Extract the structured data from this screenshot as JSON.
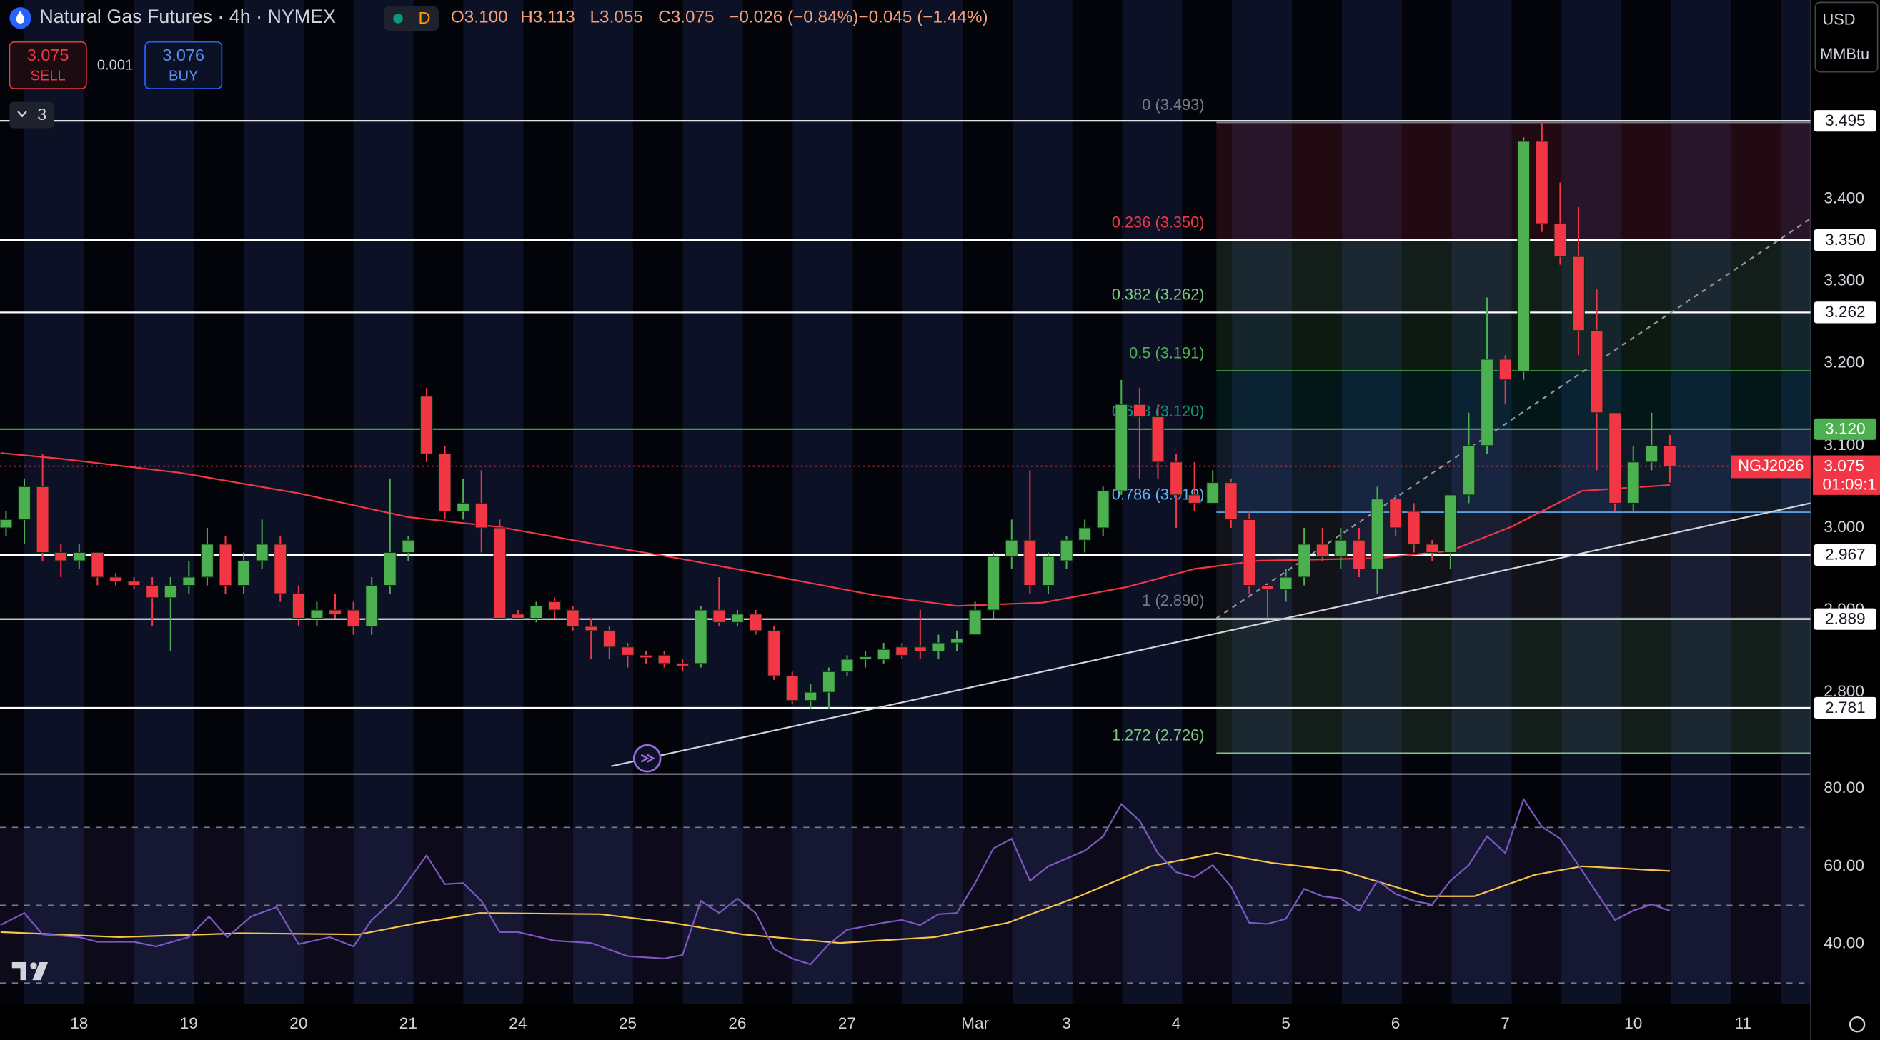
{
  "header": {
    "title": "Natural Gas Futures · 4h · NYMEX",
    "interval": "D",
    "open": "O3.100",
    "high": "H3.113",
    "low": "L3.055",
    "close": "C3.075",
    "change": "−0.026 (−0.84%)",
    "change_ext": "−0.045 (−1.44%)"
  },
  "trade": {
    "sell_price": "3.075",
    "sell": "SELL",
    "spread": "0.001",
    "buy_price": "3.076",
    "buy": "BUY"
  },
  "indicators_toggle": "3",
  "axis_unit": {
    "currency": "USD",
    "unit": "MMBtu"
  },
  "chart_data": {
    "type": "candlestick",
    "xlim": [
      -0.33,
      98.69
    ],
    "ylim": [
      2.702,
      3.642
    ],
    "up_color": "#4caf50",
    "down_color": "#f23645",
    "xticks": [
      {
        "value": 4,
        "label": "18"
      },
      {
        "value": 10,
        "label": "19"
      },
      {
        "value": 16,
        "label": "20"
      },
      {
        "value": 22,
        "label": "21"
      },
      {
        "value": 28,
        "label": "24"
      },
      {
        "value": 34,
        "label": "25"
      },
      {
        "value": 40,
        "label": "26"
      },
      {
        "value": 46,
        "label": "27"
      },
      {
        "value": 53,
        "label": "Mar"
      },
      {
        "value": 58,
        "label": "3"
      },
      {
        "value": 64,
        "label": "4"
      },
      {
        "value": 70,
        "label": "5"
      },
      {
        "value": 76,
        "label": "6"
      },
      {
        "value": 82,
        "label": "7"
      },
      {
        "value": 89,
        "label": "10"
      },
      {
        "value": 95,
        "label": "11"
      }
    ],
    "yticks": [
      {
        "value": 3.4,
        "label": "3.400"
      },
      {
        "value": 3.3,
        "label": "3.300"
      },
      {
        "value": 3.2,
        "label": "3.200"
      },
      {
        "value": 3.1,
        "label": "3.100"
      },
      {
        "value": 3.0,
        "label": "3.000"
      },
      {
        "value": 2.9,
        "label": "2.900"
      },
      {
        "value": 2.8,
        "label": "2.800"
      }
    ],
    "open": [
      3.0,
      3.01,
      3.05,
      2.97,
      2.96,
      2.97,
      2.94,
      2.935,
      2.93,
      2.915,
      2.93,
      2.94,
      2.98,
      2.93,
      2.96,
      2.98,
      2.92,
      2.89,
      2.9,
      2.9,
      2.88,
      2.93,
      2.97,
      3.16,
      3.09,
      3.02,
      3.03,
      3.0,
      2.895,
      2.89,
      2.91,
      2.9,
      2.88,
      2.875,
      2.855,
      2.845,
      2.845,
      2.835,
      2.835,
      2.9,
      2.885,
      2.895,
      2.875,
      2.82,
      2.79,
      2.8,
      2.825,
      2.84,
      2.84,
      2.855,
      2.855,
      2.85,
      2.86,
      2.87,
      2.9,
      2.965,
      2.985,
      2.93,
      2.96,
      2.985,
      3.0,
      3.045,
      3.15,
      3.135,
      3.08,
      3.04,
      3.03,
      3.055,
      3.01,
      2.93,
      2.925,
      2.94,
      2.98,
      2.965,
      2.985,
      2.95,
      3.035,
      3.02,
      2.98,
      2.97,
      3.04,
      3.1,
      3.205,
      3.19,
      3.47,
      3.37,
      3.33,
      3.24,
      3.14,
      3.03,
      3.08,
      3.1
    ],
    "high": [
      3.02,
      3.06,
      3.09,
      2.98,
      2.98,
      2.97,
      2.945,
      2.94,
      2.94,
      2.94,
      2.96,
      3.0,
      2.99,
      2.97,
      3.01,
      2.99,
      2.93,
      2.91,
      2.92,
      2.91,
      2.94,
      3.06,
      2.99,
      3.17,
      3.1,
      3.06,
      3.07,
      3.01,
      2.9,
      2.91,
      2.915,
      2.905,
      2.89,
      2.88,
      2.86,
      2.85,
      2.85,
      2.84,
      2.905,
      2.94,
      2.9,
      2.9,
      2.88,
      2.825,
      2.81,
      2.83,
      2.845,
      2.85,
      2.86,
      2.86,
      2.9,
      2.87,
      2.875,
      2.91,
      2.97,
      3.01,
      3.07,
      2.97,
      2.99,
      3.01,
      3.05,
      3.18,
      3.17,
      3.15,
      3.09,
      3.08,
      3.07,
      3.06,
      3.02,
      2.93,
      2.95,
      3.0,
      3.0,
      3.0,
      3.0,
      3.05,
      3.04,
      3.03,
      2.985,
      3.04,
      3.14,
      3.28,
      3.21,
      3.475,
      3.495,
      3.42,
      3.39,
      3.29,
      3.14,
      3.1,
      3.14,
      3.113
    ],
    "low": [
      2.99,
      2.98,
      2.96,
      2.94,
      2.95,
      2.93,
      2.93,
      2.925,
      2.88,
      2.85,
      2.92,
      2.93,
      2.92,
      2.92,
      2.95,
      2.91,
      2.88,
      2.88,
      2.89,
      2.87,
      2.87,
      2.92,
      2.96,
      3.08,
      3.01,
      3.01,
      2.97,
      2.89,
      2.89,
      2.885,
      2.89,
      2.875,
      2.84,
      2.84,
      2.83,
      2.835,
      2.83,
      2.825,
      2.83,
      2.88,
      2.88,
      2.87,
      2.815,
      2.785,
      2.78,
      2.78,
      2.82,
      2.83,
      2.835,
      2.84,
      2.84,
      2.84,
      2.85,
      2.87,
      2.89,
      2.95,
      2.92,
      2.92,
      2.95,
      2.97,
      2.99,
      3.04,
      3.06,
      3.06,
      3.0,
      3.02,
      3.03,
      3.0,
      2.92,
      2.89,
      2.91,
      2.93,
      2.96,
      2.95,
      2.94,
      2.92,
      2.99,
      2.97,
      2.96,
      2.95,
      3.03,
      3.09,
      3.15,
      3.18,
      3.36,
      3.32,
      3.21,
      3.07,
      3.02,
      3.02,
      3.07,
      3.055
    ],
    "close": [
      3.01,
      3.05,
      2.97,
      2.96,
      2.97,
      2.94,
      2.935,
      2.93,
      2.915,
      2.93,
      2.94,
      2.98,
      2.93,
      2.96,
      2.98,
      2.92,
      2.89,
      2.9,
      2.895,
      2.88,
      2.93,
      2.97,
      2.985,
      3.09,
      3.02,
      3.03,
      3.0,
      2.89,
      2.89,
      2.905,
      2.9,
      2.88,
      2.875,
      2.855,
      2.845,
      2.842,
      2.835,
      2.832,
      2.9,
      2.885,
      2.895,
      2.875,
      2.82,
      2.79,
      2.8,
      2.825,
      2.84,
      2.843,
      2.852,
      2.845,
      2.85,
      2.86,
      2.865,
      2.9,
      2.965,
      2.985,
      2.93,
      2.965,
      2.985,
      3.0,
      3.045,
      3.15,
      3.135,
      3.08,
      3.04,
      3.03,
      3.055,
      3.01,
      2.93,
      2.925,
      2.94,
      2.98,
      2.965,
      2.985,
      2.95,
      3.035,
      3.0,
      2.98,
      2.97,
      3.04,
      3.1,
      3.205,
      3.18,
      3.47,
      3.37,
      3.33,
      3.24,
      3.14,
      3.03,
      3.08,
      3.1,
      3.075
    ],
    "ma": {
      "color": "#f23645",
      "x": [
        -0.3,
        3,
        9.5,
        16,
        22,
        27,
        32.5,
        37,
        42.3,
        47.5,
        52,
        56.7,
        61.3,
        65,
        68.5,
        75,
        79,
        82.3,
        86.2,
        91
      ],
      "values": [
        3.091,
        3.084,
        3.067,
        3.042,
        3.013,
        3.001,
        2.979,
        2.962,
        2.94,
        2.918,
        2.905,
        2.909,
        2.928,
        2.95,
        2.96,
        2.963,
        2.972,
        3.001,
        3.045,
        3.052
      ]
    },
    "levels": [
      {
        "value": 3.495,
        "label": "3.495",
        "color": "#ffffff",
        "label_color": "#131722"
      },
      {
        "value": 3.35,
        "label": "3.350",
        "color": "#ffffff",
        "label_color": "#131722"
      },
      {
        "value": 3.262,
        "label": "3.262",
        "color": "#ffffff",
        "label_color": "#131722"
      },
      {
        "value": 3.12,
        "label": "3.120",
        "color": "#4caf50",
        "label_color": "#ffffff"
      },
      {
        "value": 2.967,
        "label": "2.967",
        "color": "#ffffff",
        "label_color": "#131722"
      },
      {
        "value": 2.889,
        "label": "2.889",
        "color": "#ffffff",
        "label_color": "#131722"
      },
      {
        "value": 2.781,
        "label": "2.781",
        "color": "#ffffff",
        "label_color": "#131722"
      }
    ],
    "last": {
      "value": 3.075,
      "label": "3.075",
      "symbol": "NGJ2026",
      "countdown": "01:09:1",
      "color": "#f23645"
    },
    "fib": {
      "x_start": 66.2,
      "levels": [
        {
          "label": "0 (3.493)",
          "price": 3.493,
          "color": "#787b86"
        },
        {
          "label": "0.236 (3.350)",
          "price": 3.35,
          "color": "#f23645"
        },
        {
          "label": "0.382 (3.262)",
          "price": 3.262,
          "color": "#81c784"
        },
        {
          "label": "0.5 (3.191)",
          "price": 3.191,
          "color": "#4caf50"
        },
        {
          "label": "0.618 (3.120)",
          "price": 3.12,
          "color": "#089981"
        },
        {
          "label": "0.786 (3.019)",
          "price": 3.019,
          "color": "#64b5f6"
        },
        {
          "label": "1 (2.890)",
          "price": 2.89,
          "color": "#787b86"
        },
        {
          "label": "1.272 (2.726)",
          "price": 2.726,
          "color": "#81c784"
        }
      ]
    },
    "trendlines": [
      {
        "x": [
          33.1,
          98.69
        ],
        "y": [
          2.71,
          3.03
        ],
        "color": "#d1d4dc",
        "dashed": false
      },
      {
        "x": [
          66.2,
          98.69
        ],
        "y": [
          2.89,
          3.376
        ],
        "color": "#9598a1",
        "dashed": true
      }
    ],
    "rsi": {
      "ylim": [
        24.6,
        83.1
      ],
      "yticks": [
        {
          "value": 80,
          "label": "80.00"
        },
        {
          "value": 60,
          "label": "60.00"
        },
        {
          "value": 40,
          "label": "40.00"
        }
      ],
      "bands": [
        70,
        50,
        30
      ],
      "color": "#7e57c2",
      "x": [
        -0.3,
        1,
        2,
        4,
        5,
        7,
        8.2,
        10,
        11.1,
        12.1,
        13.4,
        14.8,
        16,
        17.7,
        19,
        20,
        21.3,
        23,
        24,
        25,
        26,
        27,
        28,
        30,
        32,
        34,
        36,
        37,
        38,
        39,
        40,
        41,
        42,
        43,
        44,
        45,
        46,
        48,
        49,
        50,
        51,
        52,
        53,
        54,
        55,
        56,
        57,
        59,
        60,
        61,
        62,
        63,
        64,
        65,
        66,
        67,
        68,
        69,
        70,
        71,
        72,
        73,
        74,
        75,
        76,
        77,
        78,
        79,
        80,
        81,
        82,
        83,
        84,
        85,
        86,
        87,
        88,
        89,
        90,
        91
      ],
      "values": [
        44.9,
        48.0,
        42.5,
        41.8,
        40.6,
        40.6,
        39.4,
        41.8,
        47.1,
        41.8,
        47.1,
        49.5,
        40.0,
        41.8,
        39.4,
        46.2,
        51.7,
        62.8,
        55.4,
        55.7,
        51.1,
        43.1,
        43.1,
        40.9,
        40.3,
        36.9,
        36.3,
        37.2,
        51.1,
        48.0,
        51.7,
        48.0,
        38.8,
        36.3,
        34.8,
        40.0,
        43.7,
        45.5,
        46.2,
        44.9,
        47.7,
        48.0,
        55.7,
        64.6,
        67.1,
        56.3,
        60.0,
        64.0,
        67.7,
        76.0,
        71.7,
        63.4,
        58.5,
        57.2,
        60.3,
        54.8,
        45.5,
        45.2,
        46.5,
        54.2,
        52.3,
        51.7,
        48.6,
        56.3,
        52.9,
        51.1,
        50.2,
        56.3,
        60.3,
        67.7,
        63.4,
        77.2,
        70.2,
        67.1,
        60.3,
        53.2,
        46.2,
        48.6,
        50.2,
        48.6
      ],
      "ma": {
        "color": "#f7c548",
        "x": [
          -0.3,
          6.2,
          12.8,
          19.3,
          22.6,
          25.9,
          32.5,
          36.4,
          40.3,
          45.6,
          50.8,
          54.8,
          58.7,
          62.6,
          66.2,
          69.2,
          73.1,
          77.7,
          80.3,
          83.6,
          86.2,
          91
        ],
        "values": [
          43.1,
          41.8,
          42.8,
          42.5,
          45.5,
          48.0,
          47.7,
          45.5,
          42.5,
          40.3,
          41.8,
          45.5,
          52.3,
          60.0,
          63.4,
          60.9,
          58.8,
          52.3,
          52.3,
          57.8,
          60.0,
          58.8
        ]
      }
    }
  }
}
